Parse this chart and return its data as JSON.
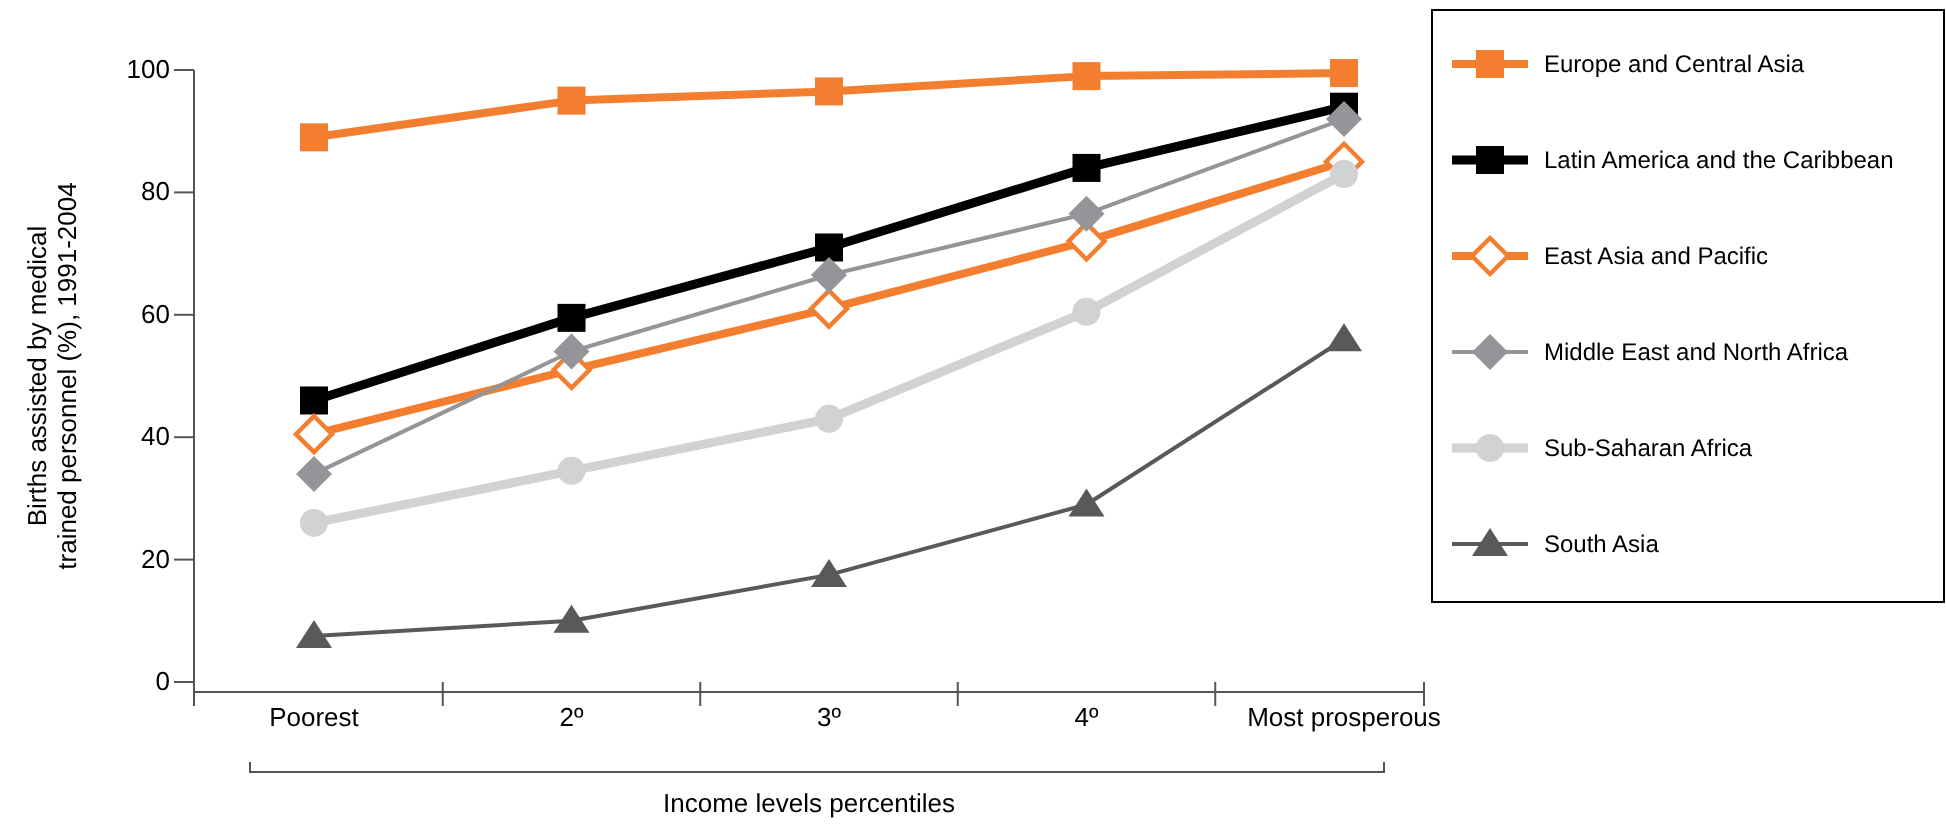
{
  "chart_data": {
    "type": "line",
    "categories": [
      "Poorest",
      "2º",
      "3º",
      "4º",
      "Most prosperous"
    ],
    "xlabel": "Income levels percentiles",
    "ylabel": "Births assisted by medical trained personnel (%), 1991-2004",
    "ylim": [
      0,
      100
    ],
    "yticks": [
      0,
      20,
      40,
      60,
      80,
      100
    ],
    "legend": "right",
    "grid": false,
    "series": [
      {
        "name": "Europe and Central Asia",
        "color": "#f47e30",
        "marker": "square",
        "values": [
          89,
          95,
          96.5,
          99,
          99.5
        ]
      },
      {
        "name": "Latin America and the Caribbean",
        "color": "#000000",
        "marker": "square",
        "values": [
          46,
          59.5,
          71,
          84,
          94
        ]
      },
      {
        "name": "East Asia and Pacific",
        "color": "#f47e30",
        "marker": "diamond",
        "values": [
          40.5,
          51,
          61,
          72,
          85
        ]
      },
      {
        "name": "Middle East and North Africa",
        "color": "#939598",
        "marker": "diamond",
        "values": [
          34,
          54,
          66.5,
          76.5,
          92
        ]
      },
      {
        "name": "Sub-Saharan Africa",
        "color": "#d1d2d4",
        "marker": "circle",
        "values": [
          26,
          34.5,
          43,
          60.5,
          83
        ]
      },
      {
        "name": "South Asia",
        "color": "#58595b",
        "marker": "triangle",
        "values": [
          7.5,
          10,
          17.5,
          29,
          56
        ]
      }
    ]
  }
}
